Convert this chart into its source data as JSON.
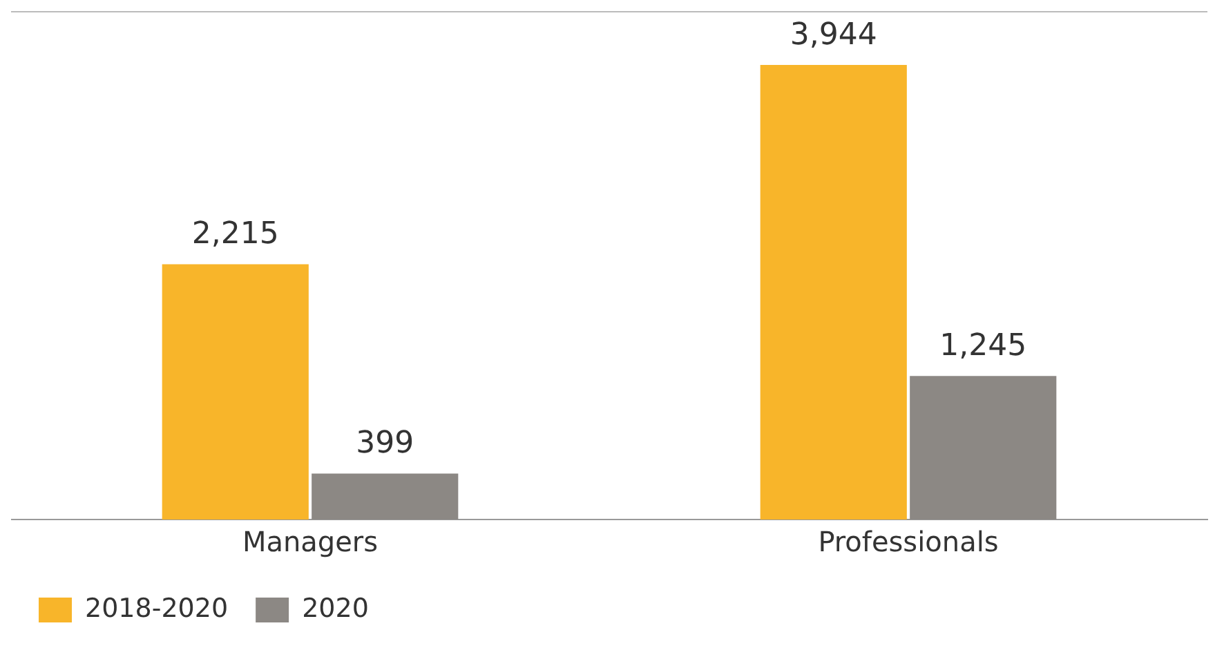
{
  "chart_data": {
    "type": "bar",
    "categories": [
      "Managers",
      "Professionals"
    ],
    "series": [
      {
        "name": "2018-2020",
        "color": "#f8b52a",
        "values": [
          2215,
          3944
        ],
        "value_labels": [
          "2,215",
          "3,944"
        ]
      },
      {
        "name": "2020",
        "color": "#8c8884",
        "values": [
          399,
          1245
        ],
        "value_labels": [
          "399",
          "1,245"
        ]
      }
    ],
    "ylim": [
      0,
      4400
    ],
    "tick_labels": "x",
    "legend": "bottom left"
  }
}
